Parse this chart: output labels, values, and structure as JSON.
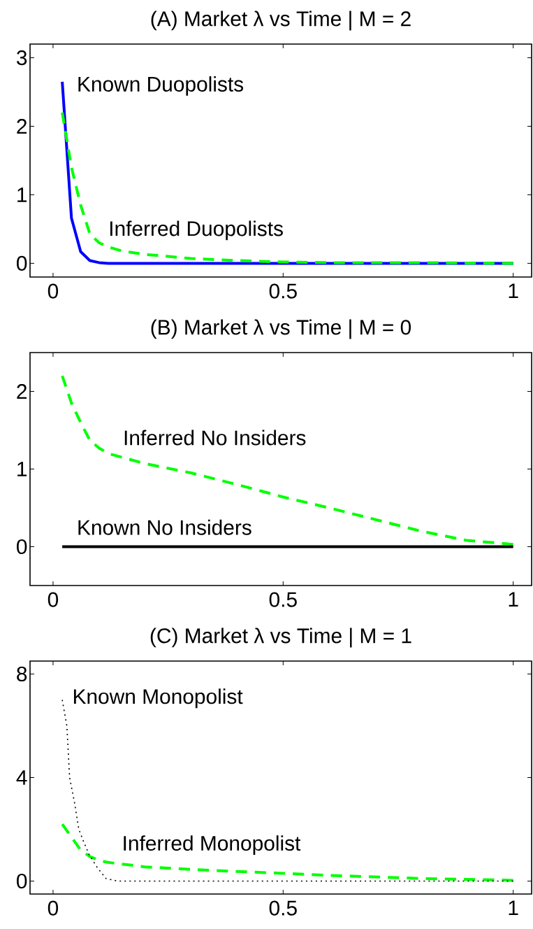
{
  "chart_data": [
    {
      "type": "line",
      "title": "(A) Market λ vs Time | M = 2",
      "xlim": [
        -0.05,
        1.04
      ],
      "ylim": [
        -0.2,
        3.2
      ],
      "xticks": [
        0,
        0.5,
        1
      ],
      "yticks": [
        0,
        1,
        2,
        3
      ],
      "series": [
        {
          "color": "#0000ff",
          "line_style": "solid",
          "x": [
            0.02,
            0.04,
            0.06,
            0.08,
            0.1,
            0.12,
            0.2,
            0.4,
            0.6,
            0.8,
            1
          ],
          "values": [
            2.65,
            0.66,
            0.17,
            0.04,
            0.01,
            0,
            0,
            0,
            0,
            0,
            0
          ]
        },
        {
          "color": "#00ff00",
          "line_style": "dashed",
          "x": [
            0.02,
            0.04,
            0.06,
            0.08,
            0.1,
            0.12,
            0.15,
            0.2,
            0.25,
            0.3,
            0.4,
            0.5,
            0.6,
            0.8,
            1
          ],
          "values": [
            2.2,
            1.4,
            0.85,
            0.43,
            0.3,
            0.24,
            0.18,
            0.13,
            0.1,
            0.07,
            0.04,
            0.02,
            0.01,
            0.01,
            0
          ]
        }
      ],
      "annotations": [
        "Known Duopolists",
        "Inferred Duopolists"
      ]
    },
    {
      "type": "line",
      "title": "(B) Market λ vs Time | M = 0",
      "xlim": [
        -0.05,
        1.04
      ],
      "ylim": [
        -0.5,
        2.5
      ],
      "xticks": [
        0,
        0.5,
        1
      ],
      "yticks": [
        0,
        1,
        2
      ],
      "series": [
        {
          "color": "#00ff00",
          "line_style": "dashed",
          "x": [
            0.02,
            0.04,
            0.06,
            0.08,
            0.1,
            0.12,
            0.2,
            0.3,
            0.4,
            0.5,
            0.6,
            0.7,
            0.8,
            0.9,
            1
          ],
          "values": [
            2.2,
            1.85,
            1.6,
            1.37,
            1.27,
            1.2,
            1.07,
            0.95,
            0.8,
            0.64,
            0.5,
            0.35,
            0.2,
            0.08,
            0.03
          ]
        },
        {
          "color": "#000000",
          "line_style": "solid",
          "x": [
            0.02,
            1
          ],
          "values": [
            0,
            0
          ]
        }
      ],
      "annotations": [
        "Inferred No Insiders",
        "Known No Insiders"
      ]
    },
    {
      "type": "line",
      "title": "(C) Market λ vs Time | M = 1",
      "xlim": [
        -0.05,
        1.04
      ],
      "ylim": [
        -0.5,
        8.5
      ],
      "xticks": [
        0,
        0.5,
        1
      ],
      "yticks": [
        0,
        4,
        8
      ],
      "series": [
        {
          "color": "#00ff00",
          "line_style": "dashed",
          "x": [
            0.02,
            0.04,
            0.06,
            0.08,
            0.1,
            0.12,
            0.2,
            0.3,
            0.4,
            0.5,
            0.6,
            0.8,
            1
          ],
          "values": [
            2.2,
            1.7,
            1.2,
            0.95,
            0.8,
            0.72,
            0.55,
            0.45,
            0.37,
            0.3,
            0.22,
            0.1,
            0.03
          ]
        },
        {
          "color": "#000000",
          "line_style": "dotted",
          "x": [
            0.02,
            0.03,
            0.036,
            0.047,
            0.056,
            0.067,
            0.079,
            0.097,
            0.115,
            0.14,
            0.2,
            0.4,
            0.6,
            0.8,
            1
          ],
          "values": [
            7.0,
            6.0,
            4.0,
            3.0,
            2.0,
            1.5,
            1.0,
            0.5,
            0.1,
            0,
            0,
            0,
            0,
            0,
            0
          ]
        }
      ],
      "annotations": [
        "Known Monopolist",
        "Inferred Monopolist"
      ]
    }
  ]
}
